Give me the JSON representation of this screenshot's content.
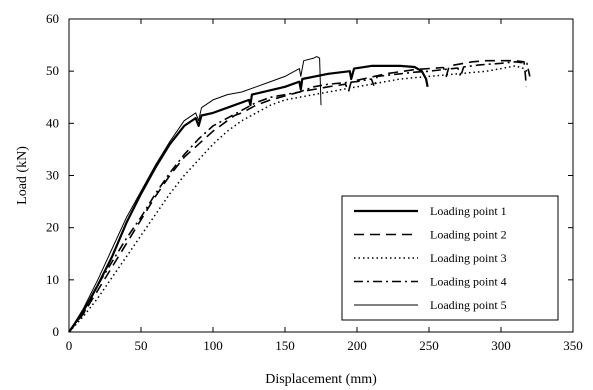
{
  "chart_data": {
    "type": "line",
    "title": "",
    "xlabel": "Displacement (mm)",
    "ylabel": "Load (kN)",
    "xlim": [
      0,
      350
    ],
    "ylim": [
      0,
      60
    ],
    "xticks": [
      0,
      50,
      100,
      150,
      200,
      250,
      300,
      350
    ],
    "yticks": [
      0,
      10,
      20,
      30,
      40,
      50,
      60
    ],
    "grid": false,
    "legend_position": "bottom-right",
    "series": [
      {
        "name": "Loading point 1",
        "style": "solid-thick",
        "color": "#000000",
        "points": [
          [
            0,
            0
          ],
          [
            10,
            4
          ],
          [
            20,
            9
          ],
          [
            30,
            14.5
          ],
          [
            40,
            21
          ],
          [
            50,
            26.5
          ],
          [
            60,
            31.5
          ],
          [
            70,
            36
          ],
          [
            80,
            39.5
          ],
          [
            88,
            41
          ],
          [
            90,
            39.5
          ],
          [
            92,
            41.5
          ],
          [
            100,
            42
          ],
          [
            110,
            43
          ],
          [
            125,
            44.5
          ],
          [
            126,
            43.5
          ],
          [
            127,
            45.5
          ],
          [
            150,
            47
          ],
          [
            160,
            48
          ],
          [
            161,
            46.5
          ],
          [
            162,
            48.5
          ],
          [
            180,
            49.5
          ],
          [
            195,
            50
          ],
          [
            196,
            48.5
          ],
          [
            198,
            50.5
          ],
          [
            210,
            51
          ],
          [
            230,
            51
          ],
          [
            240,
            50.8
          ],
          [
            245,
            50
          ],
          [
            248,
            48.5
          ],
          [
            249,
            47
          ]
        ]
      },
      {
        "name": "Loading point 2",
        "style": "dashed",
        "color": "#000000",
        "points": [
          [
            0,
            0
          ],
          [
            10,
            3.5
          ],
          [
            20,
            8
          ],
          [
            30,
            12.5
          ],
          [
            40,
            17
          ],
          [
            50,
            21.5
          ],
          [
            60,
            26
          ],
          [
            70,
            30
          ],
          [
            80,
            33.5
          ],
          [
            90,
            36
          ],
          [
            100,
            38.5
          ],
          [
            110,
            40.5
          ],
          [
            115,
            41.5
          ],
          [
            120,
            42
          ],
          [
            130,
            43.5
          ],
          [
            140,
            44.5
          ],
          [
            160,
            46
          ],
          [
            180,
            47
          ],
          [
            192,
            47.5
          ],
          [
            194,
            46
          ],
          [
            196,
            48
          ],
          [
            220,
            49.5
          ],
          [
            240,
            50.3
          ],
          [
            260,
            50.7
          ],
          [
            262,
            49
          ],
          [
            264,
            51
          ],
          [
            280,
            51.8
          ],
          [
            290,
            52
          ],
          [
            300,
            52
          ],
          [
            310,
            52
          ],
          [
            316,
            51.8
          ],
          [
            317,
            49
          ],
          [
            317.5,
            47
          ]
        ]
      },
      {
        "name": "Loading point 3",
        "style": "dotted",
        "color": "#000000",
        "points": [
          [
            0,
            0
          ],
          [
            10,
            3
          ],
          [
            20,
            6.5
          ],
          [
            30,
            10.5
          ],
          [
            40,
            14.5
          ],
          [
            50,
            18.5
          ],
          [
            60,
            22.5
          ],
          [
            70,
            26.5
          ],
          [
            80,
            30
          ],
          [
            90,
            33
          ],
          [
            100,
            36
          ],
          [
            110,
            38.5
          ],
          [
            120,
            40.5
          ],
          [
            130,
            42
          ],
          [
            140,
            43.5
          ],
          [
            150,
            44.5
          ],
          [
            170,
            45.5
          ],
          [
            190,
            46.5
          ],
          [
            210,
            47.5
          ],
          [
            220,
            48
          ],
          [
            230,
            48.5
          ],
          [
            250,
            49
          ],
          [
            270,
            49.5
          ],
          [
            290,
            50
          ],
          [
            300,
            50.5
          ],
          [
            310,
            51
          ],
          [
            316,
            50.5
          ],
          [
            320,
            49.5
          ]
        ]
      },
      {
        "name": "Loading point 4",
        "style": "dash-dot",
        "color": "#000000",
        "points": [
          [
            0,
            0
          ],
          [
            10,
            3.5
          ],
          [
            20,
            9
          ],
          [
            30,
            13.5
          ],
          [
            40,
            18
          ],
          [
            50,
            22
          ],
          [
            60,
            26.5
          ],
          [
            70,
            30.5
          ],
          [
            80,
            34
          ],
          [
            90,
            37
          ],
          [
            100,
            39.5
          ],
          [
            110,
            41
          ],
          [
            120,
            42.5
          ],
          [
            130,
            44
          ],
          [
            140,
            45
          ],
          [
            150,
            45.5
          ],
          [
            160,
            46
          ],
          [
            170,
            47
          ],
          [
            180,
            47.5
          ],
          [
            200,
            48
          ],
          [
            210,
            48.5
          ],
          [
            212,
            47
          ],
          [
            214,
            49
          ],
          [
            230,
            49.5
          ],
          [
            240,
            49.8
          ],
          [
            250,
            50
          ],
          [
            260,
            50.3
          ],
          [
            270,
            50.6
          ],
          [
            272,
            49
          ],
          [
            274,
            50.8
          ],
          [
            285,
            51.2
          ],
          [
            300,
            51.5
          ],
          [
            310,
            51.8
          ],
          [
            318,
            51.5
          ],
          [
            320,
            49
          ]
        ]
      },
      {
        "name": "Loading point 5",
        "style": "solid-thin",
        "color": "#000000",
        "points": [
          [
            0,
            0
          ],
          [
            10,
            4.5
          ],
          [
            20,
            10
          ],
          [
            30,
            16
          ],
          [
            40,
            22
          ],
          [
            50,
            27
          ],
          [
            60,
            32
          ],
          [
            70,
            36.5
          ],
          [
            80,
            40.5
          ],
          [
            88,
            42
          ],
          [
            90,
            40.5
          ],
          [
            92,
            43
          ],
          [
            100,
            44.5
          ],
          [
            110,
            45.5
          ],
          [
            120,
            46
          ],
          [
            130,
            47
          ],
          [
            140,
            48
          ],
          [
            150,
            49
          ],
          [
            160,
            50.5
          ],
          [
            161,
            49
          ],
          [
            163,
            52
          ],
          [
            170,
            52.5
          ],
          [
            172,
            52.8
          ],
          [
            174,
            52.5
          ],
          [
            175,
            43.5
          ]
        ]
      }
    ]
  }
}
